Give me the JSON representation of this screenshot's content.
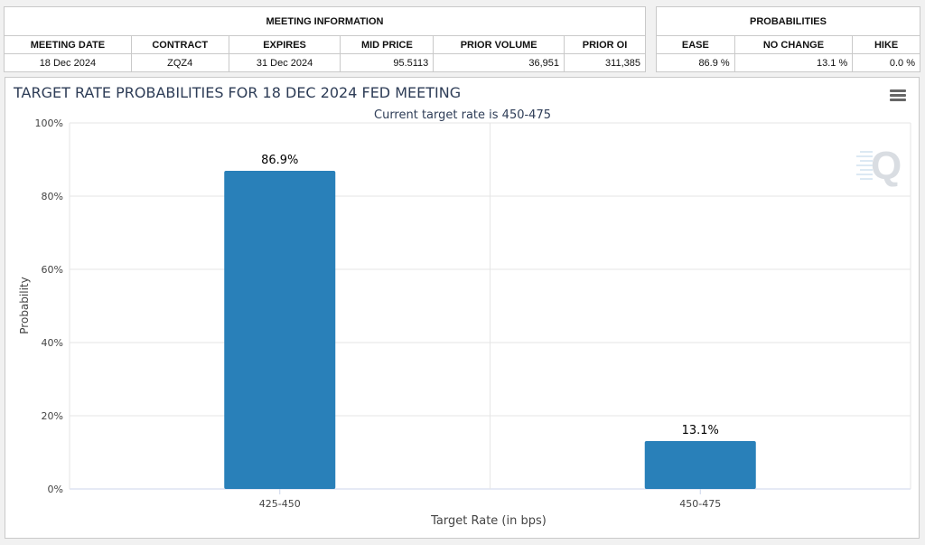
{
  "meeting_info": {
    "group_header": "MEETING INFORMATION",
    "columns": [
      "MEETING DATE",
      "CONTRACT",
      "EXPIRES",
      "MID PRICE",
      "PRIOR VOLUME",
      "PRIOR OI"
    ],
    "row": [
      "18 Dec 2024",
      "ZQZ4",
      "31 Dec 2024",
      "95.5113",
      "36,951",
      "311,385"
    ]
  },
  "probabilities": {
    "group_header": "PROBABILITIES",
    "columns": [
      "EASE",
      "NO CHANGE",
      "HIKE"
    ],
    "row": [
      "86.9 %",
      "13.1 %",
      "0.0 %"
    ]
  },
  "chart_data": {
    "type": "bar",
    "title": "TARGET RATE PROBABILITIES FOR 18 DEC 2024 FED MEETING",
    "subtitle": "Current target rate is 450-475",
    "xlabel": "Target Rate (in bps)",
    "ylabel": "Probability",
    "categories": [
      "425-450",
      "450-475"
    ],
    "values": [
      86.9,
      13.1
    ],
    "data_labels": [
      "86.9%",
      "13.1%"
    ],
    "ylim": [
      0,
      100
    ],
    "yticks": [
      0,
      20,
      40,
      60,
      80,
      100
    ],
    "ytick_labels": [
      "0%",
      "20%",
      "40%",
      "60%",
      "80%",
      "100%"
    ],
    "grid": true,
    "bar_color": "#2980b9",
    "watermark": "Q"
  }
}
